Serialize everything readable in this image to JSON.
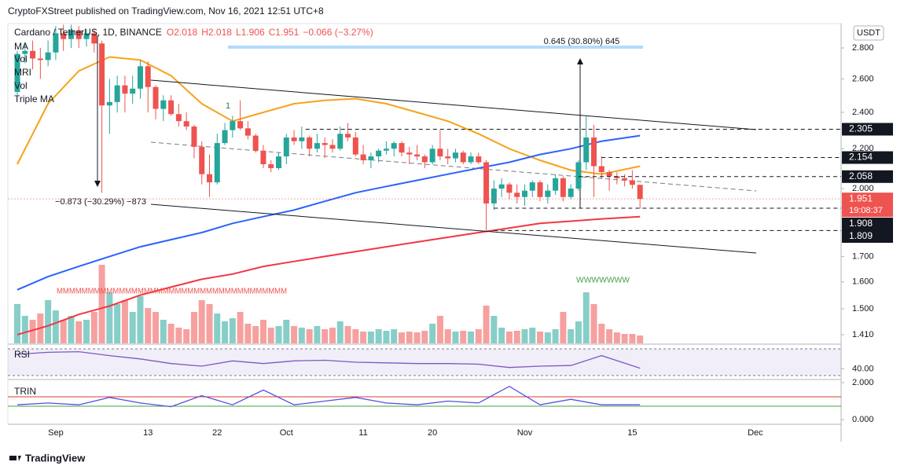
{
  "header": {
    "published": "CryptoFXStreet published on TradingView.com, Nov 16, 2021 12:51 UTC+8"
  },
  "chart_data": {
    "type": "candlestick",
    "title": "Cardano / TetherUS, 1D, BINANCE",
    "ohlc": [
      "O2.018",
      "H2.018",
      "L1.906",
      "C1.951",
      "−0.066 (−3.27%)"
    ],
    "indicator_labels": [
      "MA",
      "Vol",
      "MRI",
      "Vol",
      "Triple MA"
    ],
    "currency": "USDT",
    "log_scale": true,
    "grid": false,
    "up_color": "#26a69a",
    "down_color": "#ef5350",
    "categories": [
      null,
      null,
      null,
      null,
      null,
      "Sep",
      null,
      null,
      null,
      null,
      null,
      null,
      null,
      null,
      null,
      null,
      null,
      "13",
      null,
      null,
      null,
      null,
      null,
      null,
      null,
      null,
      "22",
      null,
      null,
      null,
      null,
      null,
      null,
      null,
      null,
      "Oct",
      null,
      null,
      null,
      null,
      null,
      null,
      null,
      null,
      null,
      "11",
      null,
      null,
      null,
      null,
      null,
      null,
      null,
      null,
      "20",
      null,
      null,
      null,
      null,
      null,
      null,
      null,
      null,
      null,
      null,
      null,
      "Nov",
      null,
      null,
      null,
      null,
      null,
      null,
      null,
      null,
      null,
      null,
      null,
      null,
      null,
      "15",
      null,
      null,
      null,
      null,
      null,
      null,
      null,
      null,
      null,
      null,
      null,
      null,
      null,
      null,
      null,
      "Dec",
      null,
      null,
      null,
      null,
      null,
      null,
      null,
      null,
      null,
      null,
      null
    ],
    "ylim": [
      1.381,
      2.968
    ],
    "yticks": [
      {
        "value": 2.8,
        "label": "2.800"
      },
      {
        "value": 2.6,
        "label": "2.600"
      },
      {
        "value": 2.4,
        "label": "2.400"
      },
      {
        "value": 2.2,
        "label": "2.200"
      },
      {
        "value": 2.0,
        "label": "2.000"
      },
      {
        "value": 1.7,
        "label": "1.700"
      },
      {
        "value": 1.6,
        "label": "1.600"
      },
      {
        "value": 1.5,
        "label": "1.500"
      },
      {
        "value": 1.41,
        "label": "1.410"
      }
    ],
    "values": [
      [
        2.52,
        2.78,
        2.5,
        2.76
      ],
      [
        2.76,
        2.84,
        2.7,
        2.78
      ],
      [
        2.78,
        2.85,
        2.66,
        2.73
      ],
      [
        2.73,
        2.8,
        2.6,
        2.72
      ],
      [
        2.72,
        2.85,
        2.68,
        2.77
      ],
      [
        2.77,
        2.95,
        2.72,
        2.9
      ],
      [
        2.9,
        2.96,
        2.78,
        2.86
      ],
      [
        2.86,
        2.96,
        2.8,
        2.92
      ],
      [
        2.92,
        2.95,
        2.8,
        2.86
      ],
      [
        2.86,
        2.93,
        2.81,
        2.9
      ],
      [
        2.9,
        2.93,
        2.77,
        2.83
      ],
      [
        2.83,
        2.85,
        1.98,
        2.44
      ],
      [
        2.44,
        2.6,
        2.28,
        2.46
      ],
      [
        2.46,
        2.62,
        2.4,
        2.56
      ],
      [
        2.56,
        2.62,
        2.4,
        2.51
      ],
      [
        2.51,
        2.62,
        2.45,
        2.54
      ],
      [
        2.54,
        2.72,
        2.48,
        2.68
      ],
      [
        2.68,
        2.71,
        2.4,
        2.55
      ],
      [
        2.55,
        2.56,
        2.36,
        2.42
      ],
      [
        2.42,
        2.5,
        2.35,
        2.47
      ],
      [
        2.47,
        2.5,
        2.38,
        2.39
      ],
      [
        2.39,
        2.45,
        2.32,
        2.35
      ],
      [
        2.35,
        2.4,
        2.3,
        2.32
      ],
      [
        2.32,
        2.33,
        2.15,
        2.21
      ],
      [
        2.21,
        2.24,
        2.02,
        2.07
      ],
      [
        2.07,
        2.17,
        1.96,
        2.03
      ],
      [
        2.03,
        2.28,
        2.02,
        2.23
      ],
      [
        2.23,
        2.34,
        2.22,
        2.3
      ],
      [
        2.3,
        2.38,
        2.26,
        2.35
      ],
      [
        2.35,
        2.47,
        2.3,
        2.31
      ],
      [
        2.31,
        2.35,
        2.25,
        2.27
      ],
      [
        2.27,
        2.28,
        2.18,
        2.19
      ],
      [
        2.19,
        2.22,
        2.1,
        2.12
      ],
      [
        2.12,
        2.14,
        2.08,
        2.1
      ],
      [
        2.1,
        2.18,
        2.09,
        2.16
      ],
      [
        2.16,
        2.28,
        2.12,
        2.26
      ],
      [
        2.26,
        2.3,
        2.22,
        2.24
      ],
      [
        2.24,
        2.32,
        2.2,
        2.26
      ],
      [
        2.26,
        2.27,
        2.16,
        2.2
      ],
      [
        2.2,
        2.28,
        2.18,
        2.23
      ],
      [
        2.23,
        2.26,
        2.15,
        2.22
      ],
      [
        2.22,
        2.25,
        2.18,
        2.2
      ],
      [
        2.2,
        2.32,
        2.19,
        2.28
      ],
      [
        2.28,
        2.34,
        2.24,
        2.26
      ],
      [
        2.26,
        2.29,
        2.16,
        2.17
      ],
      [
        2.17,
        2.22,
        2.12,
        2.14
      ],
      [
        2.14,
        2.18,
        2.1,
        2.16
      ],
      [
        2.16,
        2.2,
        2.13,
        2.19
      ],
      [
        2.19,
        2.24,
        2.17,
        2.2
      ],
      [
        2.2,
        2.24,
        2.16,
        2.23
      ],
      [
        2.23,
        2.24,
        2.16,
        2.18
      ],
      [
        2.18,
        2.21,
        2.12,
        2.17
      ],
      [
        2.17,
        2.22,
        2.14,
        2.16
      ],
      [
        2.16,
        2.17,
        2.1,
        2.13
      ],
      [
        2.13,
        2.22,
        2.12,
        2.2
      ],
      [
        2.2,
        2.3,
        2.14,
        2.16
      ],
      [
        2.16,
        2.2,
        2.12,
        2.15
      ],
      [
        2.15,
        2.2,
        2.13,
        2.18
      ],
      [
        2.18,
        2.19,
        2.12,
        2.13
      ],
      [
        2.13,
        2.18,
        2.12,
        2.16
      ],
      [
        2.16,
        2.18,
        2.12,
        2.13
      ],
      [
        2.13,
        2.14,
        1.81,
        1.93
      ],
      [
        1.93,
        2.04,
        1.9,
        2.0
      ],
      [
        2.0,
        2.05,
        1.96,
        2.02
      ],
      [
        2.02,
        2.03,
        1.95,
        1.98
      ],
      [
        1.98,
        2.02,
        1.93,
        1.96
      ],
      [
        1.96,
        2.02,
        1.92,
        1.99
      ],
      [
        1.99,
        2.04,
        1.96,
        2.03
      ],
      [
        2.03,
        2.04,
        1.94,
        1.96
      ],
      [
        1.96,
        2.02,
        1.93,
        1.99
      ],
      [
        1.99,
        2.07,
        1.97,
        2.05
      ],
      [
        2.05,
        2.06,
        1.94,
        1.96
      ],
      [
        1.96,
        2.02,
        1.95,
        2.0
      ],
      [
        2.0,
        2.14,
        1.99,
        2.13
      ],
      [
        2.13,
        2.38,
        2.09,
        2.26
      ],
      [
        2.26,
        2.33,
        1.96,
        2.11
      ],
      [
        2.11,
        2.16,
        2.05,
        2.08
      ],
      [
        2.08,
        2.09,
        1.99,
        2.06
      ],
      [
        2.06,
        2.08,
        2.02,
        2.05
      ],
      [
        2.05,
        2.07,
        2.01,
        2.04
      ],
      [
        2.04,
        2.09,
        2.0,
        2.018
      ],
      [
        2.018,
        2.018,
        1.906,
        1.951
      ],
      null,
      null,
      null,
      null,
      null,
      null,
      null,
      null,
      null,
      null,
      null,
      null,
      null,
      null,
      null,
      null,
      null,
      null,
      null,
      null,
      null,
      null,
      null,
      null,
      null,
      null
    ],
    "volume": [
      50,
      35,
      30,
      38,
      55,
      42,
      30,
      35,
      28,
      30,
      40,
      100,
      65,
      50,
      55,
      40,
      60,
      45,
      40,
      30,
      25,
      20,
      18,
      40,
      55,
      50,
      38,
      28,
      32,
      40,
      25,
      22,
      30,
      20,
      22,
      30,
      22,
      20,
      18,
      22,
      18,
      20,
      28,
      22,
      18,
      15,
      15,
      18,
      16,
      18,
      14,
      15,
      14,
      16,
      25,
      35,
      18,
      15,
      16,
      15,
      18,
      48,
      35,
      20,
      15,
      16,
      18,
      20,
      15,
      14,
      18,
      40,
      18,
      28,
      65,
      50,
      25,
      18,
      14,
      12,
      12,
      10,
      null,
      null,
      null,
      null,
      null,
      null,
      null,
      null,
      null,
      null,
      null,
      null,
      null,
      null,
      null,
      null,
      null,
      null,
      null,
      null,
      null,
      null,
      null,
      null,
      null,
      null
    ],
    "moving_averages": [
      {
        "color": "#f7a21b",
        "x": [
          0,
          4,
          8,
          12,
          16,
          20,
          24,
          28,
          32,
          36,
          40,
          44,
          48,
          52,
          56,
          60,
          64,
          68,
          72,
          76,
          81
        ],
        "values": [
          2.12,
          2.45,
          2.65,
          2.74,
          2.72,
          2.62,
          2.45,
          2.35,
          2.4,
          2.45,
          2.47,
          2.48,
          2.45,
          2.4,
          2.35,
          2.28,
          2.2,
          2.14,
          2.09,
          2.07,
          2.11
        ]
      },
      {
        "color": "#2962ff",
        "x": [
          0,
          4,
          8,
          12,
          16,
          20,
          24,
          28,
          32,
          36,
          40,
          44,
          48,
          52,
          56,
          60,
          64,
          68,
          72,
          76,
          81
        ],
        "values": [
          1.57,
          1.62,
          1.66,
          1.7,
          1.74,
          1.77,
          1.8,
          1.84,
          1.87,
          1.9,
          1.94,
          1.98,
          2.01,
          2.04,
          2.07,
          2.1,
          2.13,
          2.17,
          2.2,
          2.24,
          2.27
        ]
      },
      {
        "color": "#f23645",
        "x": [
          0,
          4,
          8,
          12,
          16,
          20,
          24,
          28,
          32,
          36,
          40,
          44,
          48,
          52,
          56,
          60,
          64,
          68,
          72,
          76,
          81
        ],
        "values": [
          1.41,
          1.44,
          1.48,
          1.51,
          1.55,
          1.58,
          1.61,
          1.63,
          1.66,
          1.68,
          1.7,
          1.72,
          1.74,
          1.76,
          1.78,
          1.8,
          1.82,
          1.84,
          1.85,
          1.86,
          1.87
        ]
      }
    ],
    "price_labels": [
      {
        "value": 2.305
      },
      {
        "value": 2.154
      },
      {
        "value": 2.058
      },
      {
        "value": 1.951,
        "countdown": "19:08:37"
      },
      {
        "value": 1.908
      },
      {
        "value": 1.809
      }
    ],
    "annotations": {
      "fib_up": "0.645 (30.80%) 645",
      "fib_down": "−0.873 (−30.29%) −873",
      "wave_mark": "1",
      "mri_top": "WWWWWWW",
      "mri_bottom": "MMMMMMMMMMMMMMMMMMMMMMMMMMMMMMMMMMMMM"
    },
    "rsi": {
      "name": "RSI",
      "color": "#7e57c2",
      "ylim": [
        25,
        75
      ],
      "yticks": [
        {
          "value": 40,
          "label": "40.00"
        }
      ],
      "x": [
        0,
        4,
        8,
        12,
        16,
        20,
        24,
        28,
        32,
        36,
        40,
        44,
        48,
        52,
        56,
        60,
        64,
        68,
        72,
        76,
        81
      ],
      "values": [
        62,
        65,
        66,
        60,
        55,
        48,
        44,
        52,
        48,
        52,
        53,
        50,
        49,
        48,
        48,
        47,
        42,
        44,
        45,
        60,
        41
      ]
    },
    "trin": {
      "name": "TRIN",
      "color": "#5252e0",
      "ylim": [
        -0.21,
        2.17
      ],
      "yticks": [
        {
          "value": 2,
          "label": "2.000"
        },
        {
          "value": 0,
          "label": "0.000"
        }
      ],
      "x": [
        0,
        4,
        8,
        12,
        16,
        20,
        24,
        28,
        32,
        36,
        40,
        44,
        48,
        52,
        56,
        60,
        64,
        68,
        72,
        76,
        81
      ],
      "values": [
        0.8,
        0.9,
        0.8,
        1.2,
        0.9,
        0.7,
        1.3,
        0.8,
        1.6,
        0.8,
        1.0,
        1.2,
        0.9,
        0.8,
        1.0,
        0.9,
        1.8,
        0.8,
        1.1,
        0.8,
        0.8
      ]
    }
  },
  "footer": "TradingView"
}
